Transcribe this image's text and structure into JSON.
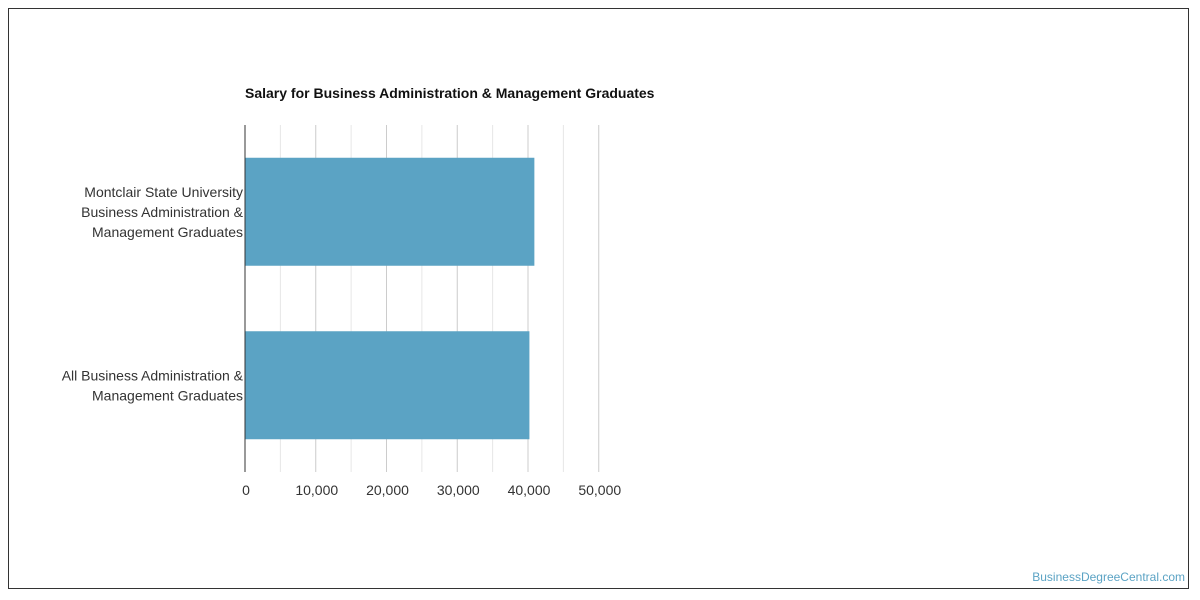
{
  "chart_data": {
    "type": "bar",
    "orientation": "horizontal",
    "title": "Salary for Business Administration & Management Graduates",
    "categories": [
      [
        "Montclair State University",
        "Business Administration &",
        "Management Graduates"
      ],
      [
        "All Business Administration &",
        "Management Graduates"
      ]
    ],
    "values": [
      40900,
      40200
    ],
    "xlim": [
      0,
      50000
    ],
    "x_ticks": [
      0,
      10000,
      20000,
      30000,
      40000,
      50000
    ],
    "x_tick_labels": [
      "0",
      "10,000",
      "20,000",
      "30,000",
      "40,000",
      "50,000"
    ],
    "grid": true,
    "bar_color": "#5ba3c4"
  },
  "watermark": "BusinessDegreeCentral.com"
}
